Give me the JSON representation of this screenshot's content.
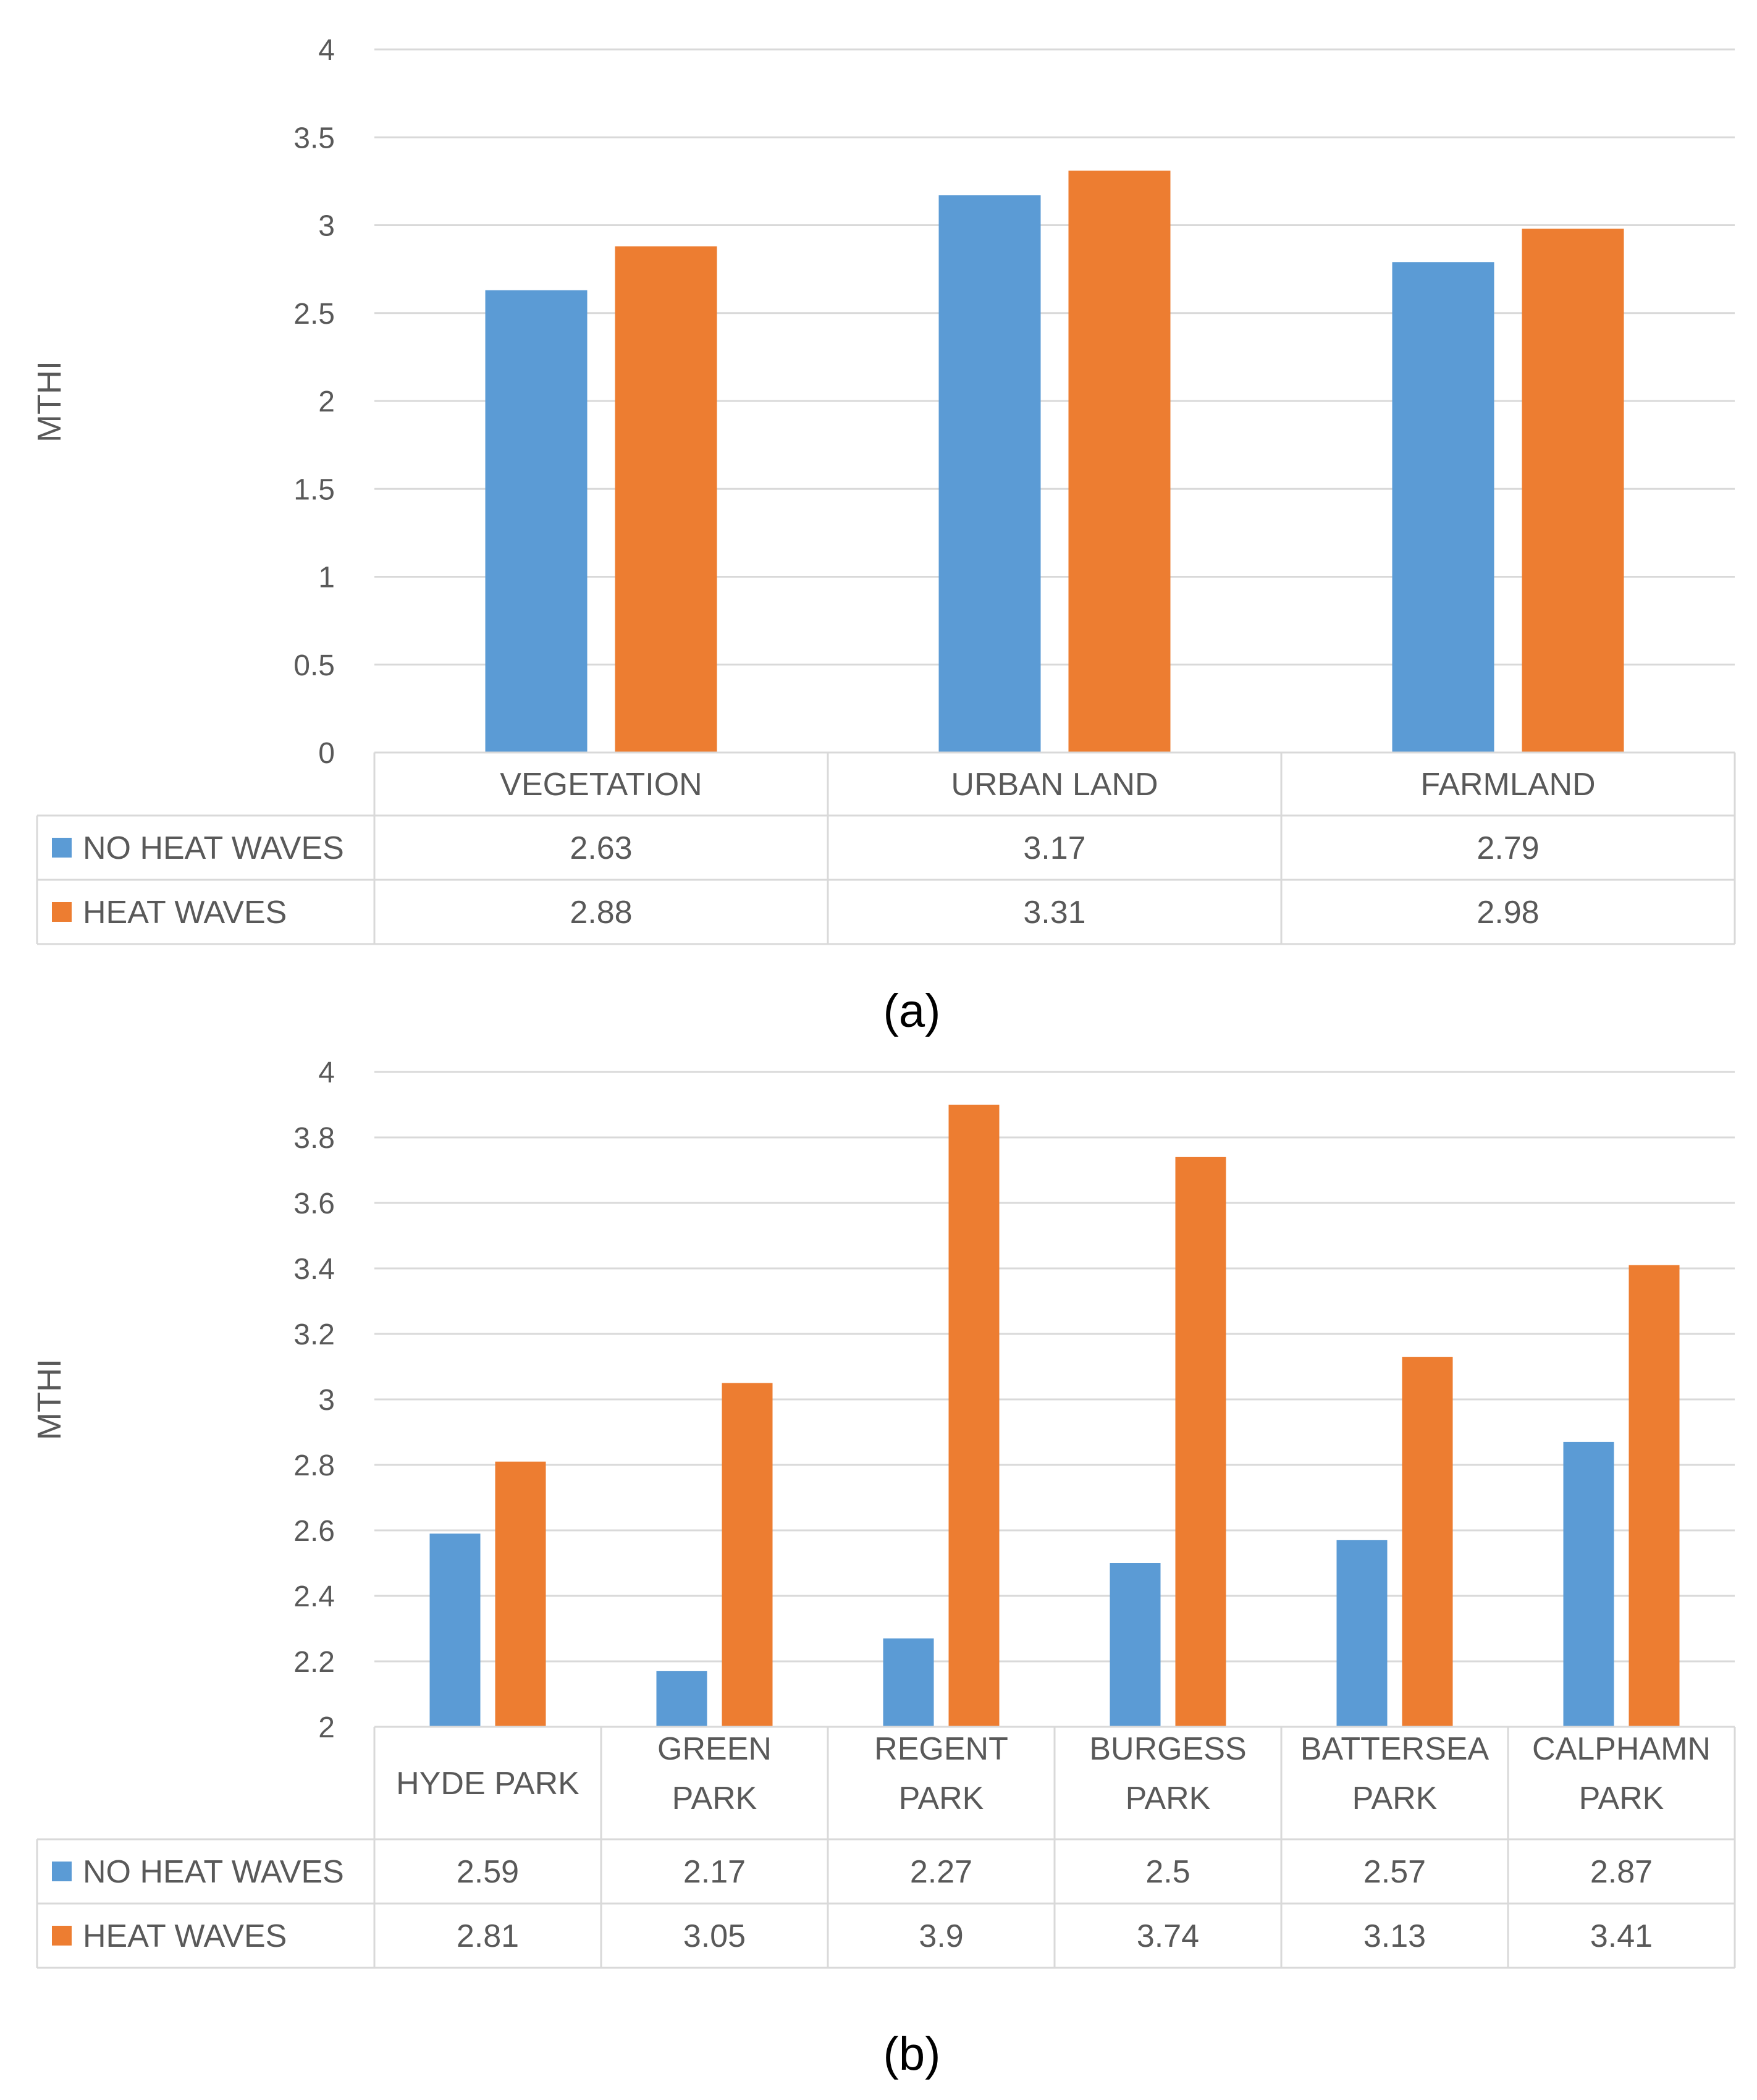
{
  "colors": {
    "no_heat": "#5b9bd5",
    "heat": "#ed7d31"
  },
  "chart_data": [
    {
      "type": "bar",
      "caption": "(a)",
      "ylabel": "MTHI",
      "ylim": [
        0,
        4
      ],
      "yticks": [
        "0",
        "0.5",
        "1",
        "1.5",
        "2",
        "2.5",
        "3",
        "3.5",
        "4"
      ],
      "categories": [
        [
          "VEGETATION"
        ],
        [
          "URBAN LAND"
        ],
        [
          "FARMLAND"
        ]
      ],
      "series": [
        {
          "name": "NO HEAT WAVES",
          "values": [
            2.63,
            3.17,
            2.79
          ],
          "labels": [
            "2.63",
            "3.17",
            "2.79"
          ]
        },
        {
          "name": "HEAT WAVES",
          "values": [
            2.88,
            3.31,
            2.98
          ],
          "labels": [
            "2.88",
            "3.31",
            "2.98"
          ]
        }
      ],
      "legend": "data-table",
      "grid": true
    },
    {
      "type": "bar",
      "caption": "(b)",
      "ylabel": "MTHI",
      "ylim": [
        2,
        4
      ],
      "yticks": [
        "2",
        "2.2",
        "2.4",
        "2.6",
        "2.8",
        "3",
        "3.2",
        "3.4",
        "3.6",
        "3.8",
        "4"
      ],
      "categories": [
        [
          "HYDE PARK"
        ],
        [
          "GREEN",
          "PARK"
        ],
        [
          "REGENT",
          "PARK"
        ],
        [
          "BURGESS",
          "PARK"
        ],
        [
          "BATTERSEA",
          "PARK"
        ],
        [
          "CALPHAMN",
          "PARK"
        ]
      ],
      "series": [
        {
          "name": "NO HEAT WAVES",
          "values": [
            2.59,
            2.17,
            2.27,
            2.5,
            2.57,
            2.87
          ],
          "labels": [
            "2.59",
            "2.17",
            "2.27",
            "2.5",
            "2.57",
            "2.87"
          ]
        },
        {
          "name": "HEAT WAVES",
          "values": [
            2.81,
            3.05,
            3.9,
            3.74,
            3.13,
            3.41
          ],
          "labels": [
            "2.81",
            "3.05",
            "3.9",
            "3.74",
            "3.13",
            "3.41"
          ]
        }
      ],
      "legend": "data-table",
      "grid": true
    }
  ]
}
